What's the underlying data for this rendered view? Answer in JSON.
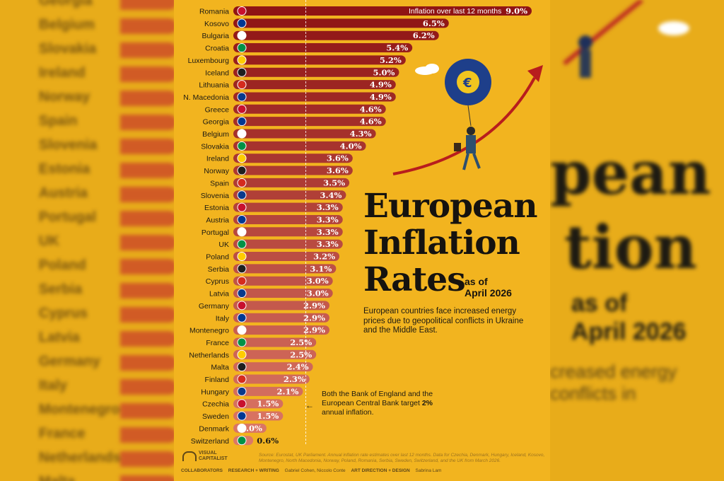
{
  "chart_data": {
    "type": "bar",
    "orientation": "horizontal",
    "title": "European Inflation Rates",
    "subtitle": "as of April 2026",
    "legend": "Inflation over last 12 months",
    "unit": "%",
    "categories": [
      "Romania",
      "Kosovo",
      "Bulgaria",
      "Croatia",
      "Luxembourg",
      "Iceland",
      "Lithuania",
      "N. Macedonia",
      "Greece",
      "Georgia",
      "Belgium",
      "Slovakia",
      "Ireland",
      "Norway",
      "Spain",
      "Slovenia",
      "Estonia",
      "Austria",
      "Portugal",
      "UK",
      "Poland",
      "Serbia",
      "Cyprus",
      "Latvia",
      "Germany",
      "Italy",
      "Montenegro",
      "France",
      "Netherlands",
      "Malta",
      "Finland",
      "Hungary",
      "Czechia",
      "Sweden",
      "Denmark",
      "Switzerland"
    ],
    "values": [
      9.0,
      6.5,
      6.2,
      5.4,
      5.2,
      5.0,
      4.9,
      4.9,
      4.6,
      4.6,
      4.3,
      4.0,
      3.6,
      3.6,
      3.5,
      3.4,
      3.3,
      3.3,
      3.3,
      3.3,
      3.2,
      3.1,
      3.0,
      3.0,
      2.9,
      2.9,
      2.9,
      2.5,
      2.5,
      2.4,
      2.3,
      2.1,
      1.5,
      1.5,
      1.0,
      0.6
    ],
    "value_labels": [
      "9.0%",
      "6.5%",
      "6.2%",
      "5.4%",
      "5.2%",
      "5.0%",
      "4.9%",
      "4.9%",
      "4.6%",
      "4.6%",
      "4.3%",
      "4.0%",
      "3.6%",
      "3.6%",
      "3.5%",
      "3.4%",
      "3.3%",
      "3.3%",
      "3.3%",
      "3.3%",
      "3.2%",
      "3.1%",
      "3.0%",
      "3.0%",
      "2.9%",
      "2.9%",
      "2.9%",
      "2.5%",
      "2.5%",
      "2.4%",
      "2.3%",
      "2.1%",
      "1.5%",
      "1.5%",
      "1.0%",
      "0.6%"
    ],
    "reference_line": 2.0,
    "xlim": [
      0,
      9.0
    ]
  },
  "text": {
    "title_line1": "European",
    "title_line2": "Inflation",
    "title_line3": "Rates",
    "asof_line1": "as of",
    "asof_line2": "April 2026",
    "description": "European countries face increased energy prices due to geopolitical conflicts in Ukraine and the Middle East.",
    "note_pre": "Both the Bank of England and the European Central Bank target ",
    "note_bold": "2%",
    "note_post": " annual inflation.",
    "source": "Source: Eurostat, UK Parliament. Annual inflation rate estimates over last 12 months. Data for Czechia, Denmark, Hungary, Iceland, Kosovo, Montenegro, North Macedonia, Norway, Poland, Romania, Serbia, Sweden, Switzerland, and the UK from March 2026.",
    "logo_line1": "VISUAL",
    "logo_line2": "CAPITALIST",
    "credits_label": "COLLABORATORS",
    "credits_research": "RESEARCH + WRITING",
    "credits_research_name": "Gabriel Cohen, Niccolo Conte",
    "credits_design": "ART DIRECTION + DESIGN",
    "credits_design_name": "Sabrina Lam"
  },
  "colors": {
    "background": "#f2b41f",
    "bar_top": "#8f1414",
    "bar_bottom": "#d8705d",
    "label_text": "#1d1a12",
    "value_text": "#ffffff"
  },
  "blurred_side": {
    "left_labels": [
      "Georgia",
      "Belgium",
      "Slovakia",
      "Ireland",
      "Norway",
      "Spain",
      "Slovenia",
      "Estonia",
      "Austria",
      "Portugal",
      "UK",
      "Poland",
      "Serbia",
      "Cyprus",
      "Latvia",
      "Germany",
      "Italy",
      "Montenegro",
      "France",
      "Netherlands",
      "Malta"
    ],
    "right_title1": "pean",
    "right_title2": "tion",
    "right_asof1": "as of",
    "right_asof2": "April 2026",
    "right_desc": "creased energy conflicts in"
  }
}
